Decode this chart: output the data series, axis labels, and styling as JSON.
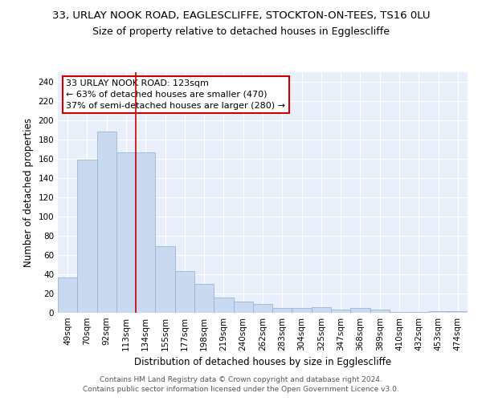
{
  "title1": "33, URLAY NOOK ROAD, EAGLESCLIFFE, STOCKTON-ON-TEES, TS16 0LU",
  "title2": "Size of property relative to detached houses in Egglescliffe",
  "xlabel": "Distribution of detached houses by size in Egglescliffe",
  "ylabel": "Number of detached properties",
  "categories": [
    "49sqm",
    "70sqm",
    "92sqm",
    "113sqm",
    "134sqm",
    "155sqm",
    "177sqm",
    "198sqm",
    "219sqm",
    "240sqm",
    "262sqm",
    "283sqm",
    "304sqm",
    "325sqm",
    "347sqm",
    "368sqm",
    "389sqm",
    "410sqm",
    "432sqm",
    "453sqm",
    "474sqm"
  ],
  "values": [
    37,
    159,
    188,
    167,
    167,
    69,
    43,
    30,
    16,
    12,
    9,
    5,
    5,
    6,
    3,
    5,
    3,
    1,
    1,
    2,
    2
  ],
  "bar_color": "#c8d9f0",
  "bar_edge_color": "#8badd4",
  "vline_x": 3.5,
  "vline_color": "#cc0000",
  "annotation_text": "33 URLAY NOOK ROAD: 123sqm\n← 63% of detached houses are smaller (470)\n37% of semi-detached houses are larger (280) →",
  "annotation_box_color": "#ffffff",
  "annotation_box_edgecolor": "#cc0000",
  "ylim": [
    0,
    250
  ],
  "yticks": [
    0,
    20,
    40,
    60,
    80,
    100,
    120,
    140,
    160,
    180,
    200,
    220,
    240
  ],
  "bg_color": "#eaf0fb",
  "footer": "Contains HM Land Registry data © Crown copyright and database right 2024.\nContains public sector information licensed under the Open Government Licence v3.0.",
  "title1_fontsize": 9.5,
  "title2_fontsize": 9,
  "xlabel_fontsize": 8.5,
  "ylabel_fontsize": 8.5,
  "tick_fontsize": 7.5,
  "annotation_fontsize": 8,
  "footer_fontsize": 6.5
}
